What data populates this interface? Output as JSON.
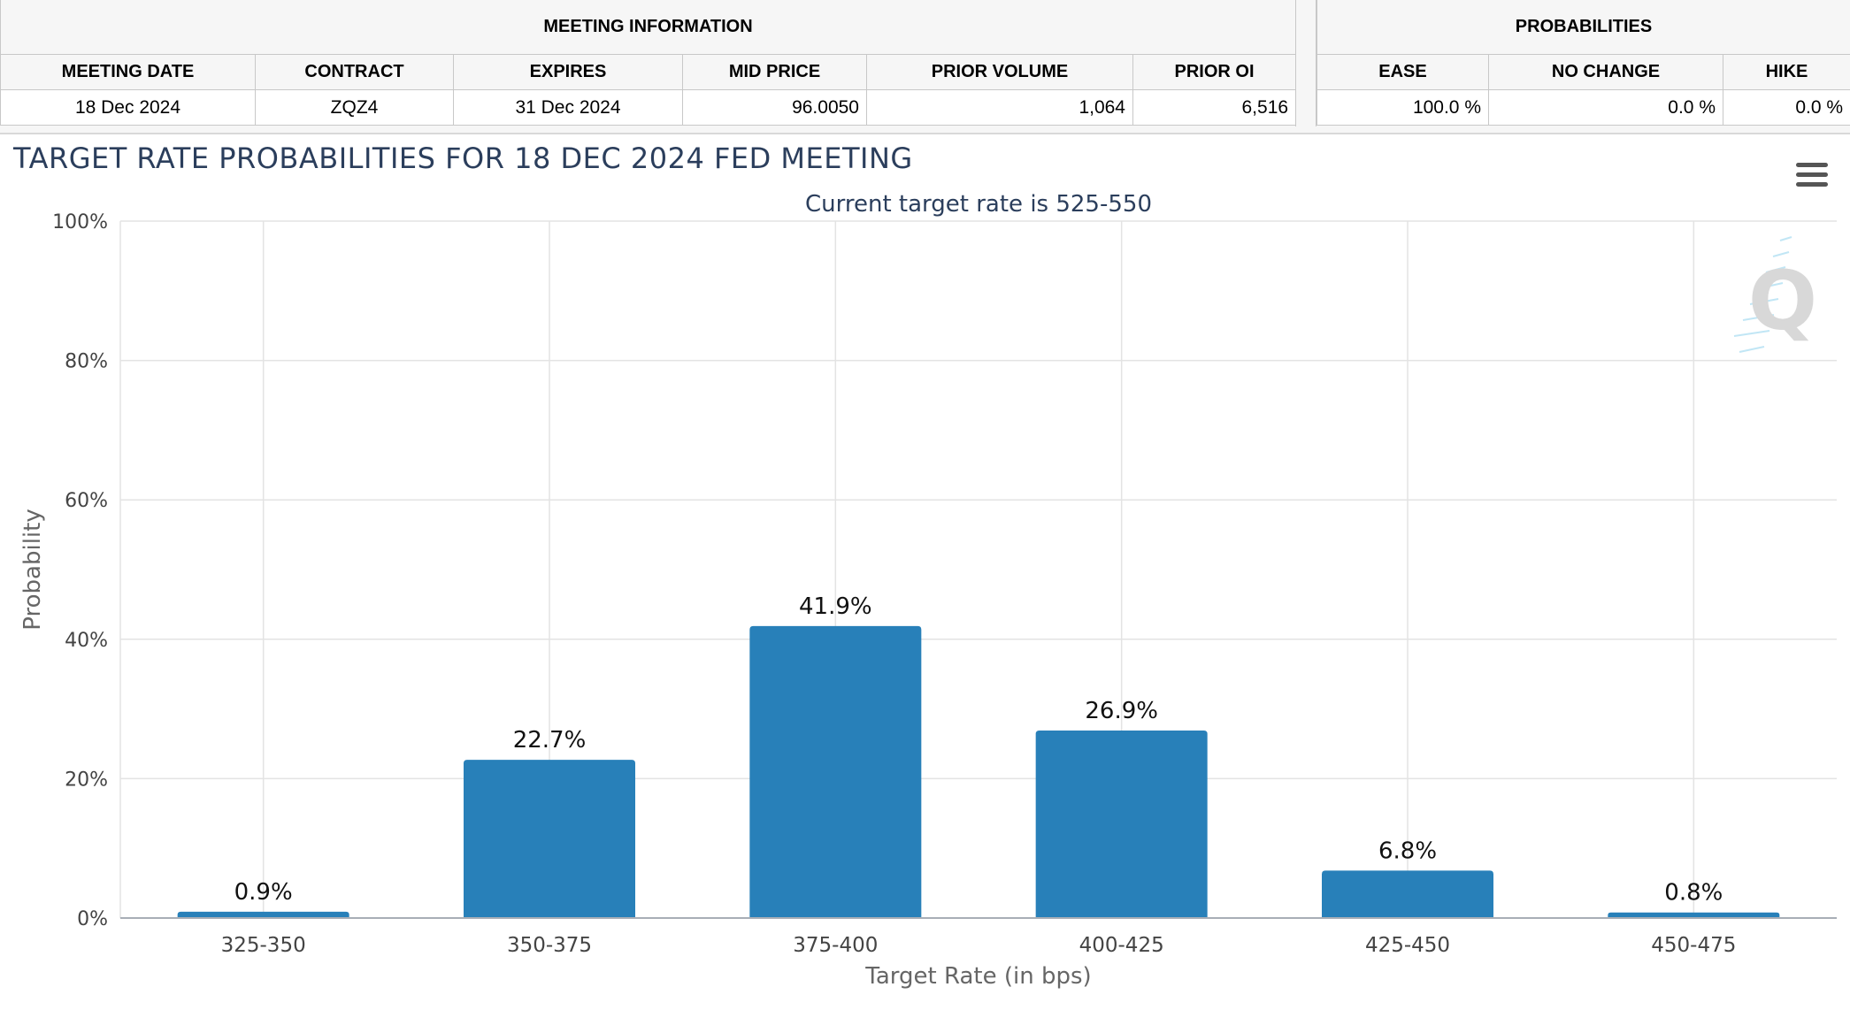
{
  "meeting_info": {
    "group_title": "MEETING INFORMATION",
    "headers": [
      "MEETING DATE",
      "CONTRACT",
      "EXPIRES",
      "MID PRICE",
      "PRIOR VOLUME",
      "PRIOR OI"
    ],
    "row": [
      "18 Dec 2024",
      "ZQZ4",
      "31 Dec 2024",
      "96.0050",
      "1,064",
      "6,516"
    ]
  },
  "probabilities": {
    "group_title": "PROBABILITIES",
    "headers": [
      "EASE",
      "NO CHANGE",
      "HIKE"
    ],
    "row": [
      "100.0 %",
      "0.0 %",
      "0.0 %"
    ]
  },
  "chart": {
    "menu_icon": "hamburger-menu-icon",
    "watermark_icon": "q-logo-watermark-icon",
    "bar_color": "#2880b9"
  },
  "chart_data": {
    "type": "bar",
    "title": "TARGET RATE PROBABILITIES FOR 18 DEC 2024 FED MEETING",
    "subtitle": "Current target rate is 525-550",
    "xlabel": "Target Rate (in bps)",
    "ylabel": "Probability",
    "categories": [
      "325-350",
      "350-375",
      "375-400",
      "400-425",
      "425-450",
      "450-475"
    ],
    "values": [
      0.9,
      22.7,
      41.9,
      26.9,
      6.8,
      0.8
    ],
    "data_labels": [
      "0.9%",
      "22.7%",
      "41.9%",
      "26.9%",
      "6.8%",
      "0.8%"
    ],
    "ylim": [
      0,
      100
    ],
    "yticks": [
      0,
      20,
      40,
      60,
      80,
      100
    ],
    "ytick_labels": [
      "0%",
      "20%",
      "40%",
      "60%",
      "80%",
      "100%"
    ],
    "grid": true,
    "legend": "none"
  }
}
